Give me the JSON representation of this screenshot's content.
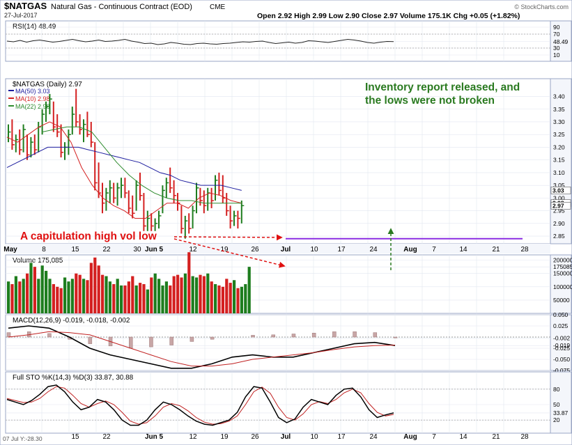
{
  "header": {
    "symbol": "$NATGAS",
    "name": "Natural Gas - Continuous Contract (EOD)",
    "exchange": "CME",
    "date": "27-Jul-2017",
    "ohlc": "Open 2.92  High 2.99  Low 2.90  Close 2.97  Volume 175.1K  Chg +0.05 (+1.82%)",
    "watermark": "© StockCharts.com",
    "footer": "07 Jul Y:-28.30"
  },
  "colors": {
    "up": "#1e7d1e",
    "down": "#d42020",
    "ma50": "#1c1c9e",
    "ma10": "#d42020",
    "ma22": "#2e8b2e",
    "support": "#8a2be2",
    "annotation_red": "#e01010",
    "annotation_green": "#2a7a20"
  },
  "annotations": {
    "inventory_line1": "Inventory report released, and",
    "inventory_line2": "the lows were not broken",
    "capitulation": "A capitulation high vol low"
  },
  "chart_data": [
    {
      "type": "line",
      "panel": "RSI",
      "title": "RSI(14) 48.49",
      "ylim": [
        0,
        100
      ],
      "y_ticks": [
        10,
        30,
        48.49,
        70,
        90
      ],
      "y_tick_labels": [
        "10",
        "30",
        "48.49",
        "70",
        "90"
      ],
      "series": [
        {
          "name": "RSI(14)",
          "values": [
            50,
            48,
            52,
            47,
            51,
            53,
            50,
            47,
            49,
            52,
            55,
            51,
            48,
            50,
            53,
            49,
            50,
            52,
            55,
            50,
            47,
            43,
            44,
            40,
            42,
            46,
            44,
            41,
            40,
            43,
            44,
            42,
            41,
            43,
            44,
            46,
            48,
            47,
            49,
            50,
            46,
            43,
            45,
            47,
            44,
            46,
            51,
            50,
            48,
            46,
            49,
            52,
            55,
            53,
            50,
            46,
            44,
            47,
            49,
            48.49
          ]
        }
      ]
    },
    {
      "type": "candlestick",
      "panel": "Price",
      "title": "$NATGAS (Daily) 2.97",
      "ylim": [
        2.82,
        3.47
      ],
      "y_ticks": [
        2.85,
        2.9,
        2.95,
        3.0,
        3.05,
        3.1,
        3.15,
        3.2,
        3.25,
        3.3,
        3.35,
        3.4
      ],
      "y_tick_labels": [
        "2.85",
        "2.90",
        "2.95",
        "3.00",
        "3.05",
        "3.10",
        "3.15",
        "3.20",
        "3.25",
        "3.30",
        "3.35",
        "3.40"
      ],
      "right_labels": [
        {
          "value": 3.03,
          "label": "3.03"
        },
        {
          "value": 2.98,
          "label": "2.98"
        },
        {
          "value": 2.97,
          "label": "2.97"
        }
      ],
      "x_labels": [
        "May",
        "8",
        "15",
        "22",
        "30",
        "Jun 5",
        "12",
        "19",
        "26",
        "Jul",
        "10",
        "17",
        "24",
        "Aug",
        "7",
        "14",
        "21",
        "28"
      ],
      "legend": [
        "MA(50) 3.03",
        "MA(10) 2.98",
        "MA(22) 2.98"
      ],
      "support_level": 2.84,
      "bars": [
        {
          "date": "Apr 28",
          "h": 3.29,
          "l": 3.22,
          "c": 3.26,
          "up": true
        },
        {
          "date": "May 1",
          "h": 3.31,
          "l": 3.19,
          "c": 3.21,
          "up": false
        },
        {
          "date": "May 2",
          "h": 3.25,
          "l": 3.18,
          "c": 3.23,
          "up": true
        },
        {
          "date": "May 3",
          "h": 3.27,
          "l": 3.17,
          "c": 3.19,
          "up": false
        },
        {
          "date": "May 4",
          "h": 3.29,
          "l": 3.18,
          "c": 3.27,
          "up": true
        },
        {
          "date": "May 5",
          "h": 3.25,
          "l": 3.15,
          "c": 3.17,
          "up": false
        },
        {
          "date": "May 8",
          "h": 3.24,
          "l": 3.16,
          "c": 3.22,
          "up": true
        },
        {
          "date": "May 9",
          "h": 3.25,
          "l": 3.17,
          "c": 3.19,
          "up": false
        },
        {
          "date": "May 10",
          "h": 3.3,
          "l": 3.18,
          "c": 3.28,
          "up": true
        },
        {
          "date": "May 11",
          "h": 3.35,
          "l": 3.25,
          "c": 3.33,
          "up": true
        },
        {
          "date": "May 12",
          "h": 3.38,
          "l": 3.3,
          "c": 3.36,
          "up": true
        },
        {
          "date": "May 15",
          "h": 3.41,
          "l": 3.33,
          "c": 3.39,
          "up": true
        },
        {
          "date": "May 16",
          "h": 3.38,
          "l": 3.26,
          "c": 3.28,
          "up": false
        },
        {
          "date": "May 17",
          "h": 3.33,
          "l": 3.24,
          "c": 3.26,
          "up": false
        },
        {
          "date": "May 18",
          "h": 3.29,
          "l": 3.16,
          "c": 3.18,
          "up": false
        },
        {
          "date": "May 19",
          "h": 3.22,
          "l": 3.15,
          "c": 3.2,
          "up": true
        },
        {
          "date": "May 22",
          "h": 3.27,
          "l": 3.17,
          "c": 3.25,
          "up": true
        },
        {
          "date": "May 23",
          "h": 3.36,
          "l": 3.25,
          "c": 3.33,
          "up": true
        },
        {
          "date": "May 24",
          "h": 3.43,
          "l": 3.28,
          "c": 3.3,
          "up": false
        },
        {
          "date": "May 25",
          "h": 3.33,
          "l": 3.25,
          "c": 3.27,
          "up": false
        },
        {
          "date": "May 26",
          "h": 3.31,
          "l": 3.22,
          "c": 3.29,
          "up": true
        },
        {
          "date": "May 30",
          "h": 3.34,
          "l": 3.24,
          "c": 3.25,
          "up": false
        },
        {
          "date": "May 31",
          "h": 3.3,
          "l": 3.2,
          "c": 3.22,
          "up": false
        },
        {
          "date": "Jun 1",
          "h": 3.22,
          "l": 3.03,
          "c": 3.06,
          "up": false
        },
        {
          "date": "Jun 2",
          "h": 3.14,
          "l": 3.0,
          "c": 3.02,
          "up": false
        },
        {
          "date": "Jun 5",
          "h": 3.06,
          "l": 2.94,
          "c": 2.98,
          "up": false
        },
        {
          "date": "Jun 6",
          "h": 3.04,
          "l": 2.95,
          "c": 3.02,
          "up": true
        },
        {
          "date": "Jun 7",
          "h": 3.07,
          "l": 2.98,
          "c": 3.04,
          "up": true
        },
        {
          "date": "Jun 8",
          "h": 3.06,
          "l": 2.98,
          "c": 3.0,
          "up": false
        },
        {
          "date": "Jun 9",
          "h": 3.06,
          "l": 2.97,
          "c": 3.04,
          "up": true
        },
        {
          "date": "Jun 12",
          "h": 3.08,
          "l": 3.0,
          "c": 3.05,
          "up": true
        },
        {
          "date": "Jun 13",
          "h": 3.08,
          "l": 3.0,
          "c": 3.02,
          "up": false
        },
        {
          "date": "Jun 14",
          "h": 3.03,
          "l": 2.94,
          "c": 2.96,
          "up": false
        },
        {
          "date": "Jun 15",
          "h": 3.01,
          "l": 2.92,
          "c": 2.94,
          "up": false
        },
        {
          "date": "Jun 16",
          "h": 3.07,
          "l": 2.95,
          "c": 3.05,
          "up": true
        },
        {
          "date": "Jun 19",
          "h": 3.1,
          "l": 2.99,
          "c": 3.01,
          "up": false
        },
        {
          "date": "Jun 20",
          "h": 3.02,
          "l": 2.87,
          "c": 2.89,
          "up": false
        },
        {
          "date": "Jun 21",
          "h": 2.95,
          "l": 2.87,
          "c": 2.92,
          "up": true
        },
        {
          "date": "Jun 22",
          "h": 2.94,
          "l": 2.87,
          "c": 2.89,
          "up": false
        },
        {
          "date": "Jun 23",
          "h": 2.92,
          "l": 2.87,
          "c": 2.9,
          "up": true
        },
        {
          "date": "Jun 26",
          "h": 2.95,
          "l": 2.88,
          "c": 2.93,
          "up": true
        },
        {
          "date": "Jun 27",
          "h": 3.05,
          "l": 2.94,
          "c": 3.03,
          "up": true
        },
        {
          "date": "Jun 28",
          "h": 3.08,
          "l": 3.0,
          "c": 3.06,
          "up": true
        },
        {
          "date": "Jun 29",
          "h": 3.12,
          "l": 3.02,
          "c": 3.04,
          "up": false
        },
        {
          "date": "Jun 30",
          "h": 3.07,
          "l": 2.98,
          "c": 3.01,
          "up": false
        },
        {
          "date": "Jul 3",
          "h": 3.02,
          "l": 2.95,
          "c": 2.98,
          "up": false
        },
        {
          "date": "Jul 5",
          "h": 2.97,
          "l": 2.86,
          "c": 2.88,
          "up": false
        },
        {
          "date": "Jul 6",
          "h": 2.93,
          "l": 2.84,
          "c": 2.91,
          "up": true
        },
        {
          "date": "Jul 7",
          "h": 2.94,
          "l": 2.86,
          "c": 2.88,
          "up": false
        },
        {
          "date": "Jul 10",
          "h": 2.97,
          "l": 2.88,
          "c": 2.95,
          "up": true
        },
        {
          "date": "Jul 11",
          "h": 3.06,
          "l": 2.94,
          "c": 3.04,
          "up": true
        },
        {
          "date": "Jul 12",
          "h": 3.04,
          "l": 2.97,
          "c": 2.99,
          "up": false
        },
        {
          "date": "Jul 13",
          "h": 3.03,
          "l": 2.94,
          "c": 2.97,
          "up": false
        },
        {
          "date": "Jul 14",
          "h": 3.04,
          "l": 2.95,
          "c": 3.02,
          "up": true
        },
        {
          "date": "Jul 17",
          "h": 3.04,
          "l": 2.96,
          "c": 2.99,
          "up": false
        },
        {
          "date": "Jul 18",
          "h": 3.09,
          "l": 2.99,
          "c": 3.07,
          "up": true
        },
        {
          "date": "Jul 19",
          "h": 3.1,
          "l": 3.01,
          "c": 3.03,
          "up": false
        },
        {
          "date": "Jul 20",
          "h": 3.09,
          "l": 2.98,
          "c": 3.0,
          "up": false
        },
        {
          "date": "Jul 21",
          "h": 3.02,
          "l": 2.93,
          "c": 2.95,
          "up": false
        },
        {
          "date": "Jul 24",
          "h": 2.97,
          "l": 2.88,
          "c": 2.91,
          "up": false
        },
        {
          "date": "Jul 25",
          "h": 2.95,
          "l": 2.89,
          "c": 2.93,
          "up": true
        },
        {
          "date": "Jul 26",
          "h": 2.95,
          "l": 2.88,
          "c": 2.92,
          "up": false
        },
        {
          "date": "Jul 27",
          "h": 2.99,
          "l": 2.9,
          "c": 2.97,
          "up": true
        }
      ],
      "ma50": [
        3.12,
        3.14,
        3.16,
        3.18,
        3.2,
        3.2,
        3.2,
        3.2,
        3.19,
        3.18,
        3.17,
        3.16,
        3.15,
        3.14,
        3.12,
        3.1,
        3.09,
        3.07,
        3.06,
        3.05,
        3.05,
        3.05,
        3.04,
        3.03
      ],
      "ma10": [
        3.24,
        3.22,
        3.25,
        3.28,
        3.3,
        3.28,
        3.22,
        3.12,
        3.05,
        3.0,
        2.97,
        2.95,
        2.92,
        2.92,
        2.95,
        2.98,
        2.98,
        2.96,
        3.0,
        3.02,
        3.01,
        2.99,
        2.98
      ],
      "ma22": [
        3.26,
        3.27,
        3.28,
        3.28,
        3.26,
        3.2,
        3.14,
        3.09,
        3.05,
        3.02,
        3.0,
        2.99,
        2.99,
        2.98,
        2.98,
        2.98,
        2.98
      ]
    },
    {
      "type": "bar",
      "panel": "Volume",
      "title": "Volume 175,085",
      "ylim": [
        0,
        220000
      ],
      "y_ticks": [
        50000,
        100000,
        150000,
        175085,
        200000
      ],
      "y_tick_labels": [
        "50000",
        "100000",
        "150000",
        "175085",
        "200000"
      ],
      "values": [
        120,
        110,
        140,
        120,
        130,
        150,
        190,
        175,
        130,
        180,
        160,
        130,
        110,
        100,
        95,
        135,
        120,
        130,
        150,
        145,
        130,
        125,
        190,
        210,
        180,
        145,
        140,
        120,
        110,
        130,
        105,
        105,
        120,
        140,
        105,
        115,
        110,
        90,
        135,
        150,
        130,
        105,
        120,
        105,
        140,
        145,
        135,
        150,
        230,
        140,
        135,
        145,
        140,
        150,
        120,
        110,
        105,
        100,
        130,
        115,
        125,
        95,
        100,
        110,
        175.085
      ],
      "values_unit": "thousands"
    },
    {
      "type": "line",
      "panel": "MACD",
      "title": "MACD(12,26,9) -0.019, -0.018, -0.002",
      "ylim": [
        -0.075,
        0.05
      ],
      "y_ticks": [
        -0.075,
        -0.05,
        -0.025,
        -0.019,
        -0.002,
        0.025,
        0.05
      ],
      "y_tick_labels": [
        "-0.075",
        "-0.050",
        "-0.025",
        "-0.019",
        "-0.002",
        "0.025",
        "0.050"
      ],
      "series": [
        {
          "name": "MACD",
          "values": [
            0.02,
            0.025,
            0.02,
            0.0,
            -0.025,
            -0.04,
            -0.05,
            -0.06,
            -0.07,
            -0.07,
            -0.06,
            -0.045,
            -0.04,
            -0.045,
            -0.045,
            -0.035,
            -0.025,
            -0.015,
            -0.012,
            -0.019
          ]
        },
        {
          "name": "Signal",
          "values": [
            0.0,
            0.005,
            0.012,
            0.01,
            0.005,
            -0.01,
            -0.025,
            -0.04,
            -0.055,
            -0.065,
            -0.065,
            -0.06,
            -0.05,
            -0.045,
            -0.04,
            -0.035,
            -0.028,
            -0.022,
            -0.019,
            -0.018
          ]
        },
        {
          "name": "Histogram",
          "values": [
            0.01,
            0.012,
            0.008,
            -0.005,
            -0.015,
            -0.02,
            -0.025,
            -0.022,
            -0.018,
            -0.01,
            -0.005,
            0.0,
            0.004,
            0.005,
            0.007,
            0.009,
            0.012,
            0.012,
            0.01,
            -0.002
          ]
        }
      ]
    },
    {
      "type": "line",
      "panel": "Stochastic",
      "title": "Full STO %K(14,3) %D(3) 33.87, 30.88",
      "ylim": [
        0,
        100
      ],
      "y_ticks": [
        20,
        33.87,
        50,
        80
      ],
      "y_tick_labels": [
        "20",
        "33.87",
        "50",
        "80"
      ],
      "series": [
        {
          "name": "%K",
          "values": [
            60,
            55,
            50,
            58,
            70,
            85,
            88,
            75,
            55,
            40,
            45,
            60,
            55,
            40,
            20,
            10,
            10,
            20,
            40,
            55,
            50,
            40,
            28,
            18,
            12,
            10,
            15,
            20,
            35,
            65,
            85,
            82,
            55,
            25,
            15,
            22,
            45,
            60,
            55,
            50,
            68,
            80,
            82,
            65,
            40,
            25,
            30,
            33.87
          ]
        },
        {
          "name": "%D",
          "values": [
            62,
            58,
            54,
            55,
            62,
            75,
            85,
            82,
            68,
            52,
            45,
            52,
            57,
            50,
            35,
            18,
            12,
            15,
            28,
            45,
            52,
            48,
            38,
            25,
            16,
            12,
            13,
            18,
            28,
            50,
            75,
            84,
            72,
            45,
            25,
            20,
            32,
            50,
            56,
            52,
            60,
            73,
            80,
            73,
            52,
            35,
            28,
            30.88
          ]
        }
      ]
    }
  ]
}
